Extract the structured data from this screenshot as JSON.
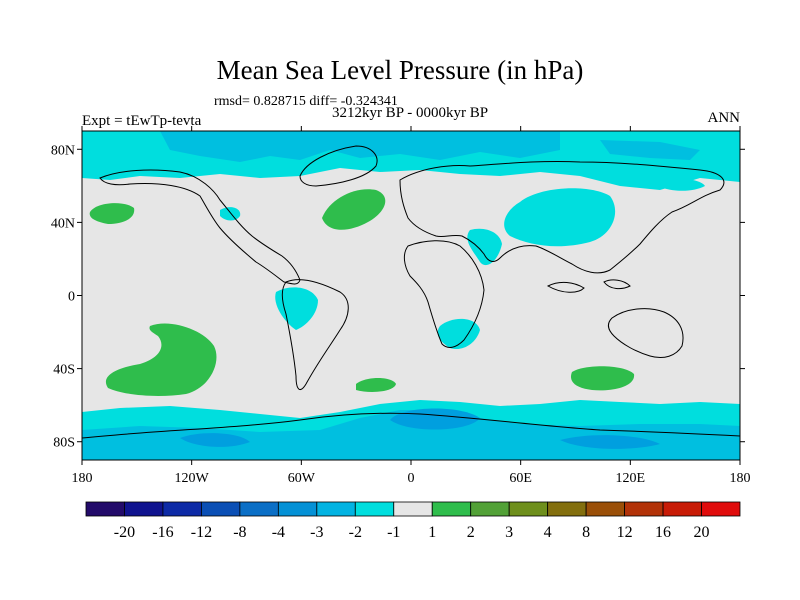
{
  "title": "Mean Sea Level Pressure (in hPa)",
  "stats_line": "rmsd= 0.828715 diff= -0.324341",
  "period": "3212kyr BP - 0000kyr BP",
  "experiment": "Expt = tEwTp-tevta",
  "season": "ANN",
  "map": {
    "lat_ticks": [
      "80N",
      "40N",
      "0",
      "40S",
      "80S"
    ],
    "lon_ticks": [
      "180",
      "120W",
      "60W",
      "0",
      "60E",
      "120E",
      "180"
    ],
    "colors": {
      "neutral": "#e6e6e6",
      "neg1": "#00dede",
      "neg2": "#00bfe0",
      "neg3": "#009fdf",
      "pos1": "#2fbd4c",
      "coast": "#000000"
    }
  },
  "colorbar": {
    "colors": [
      "#230b6a",
      "#10138f",
      "#0d2aa6",
      "#0b4fb5",
      "#0b6fc6",
      "#0491d6",
      "#02b3e2",
      "#00dede",
      "#e6e6e6",
      "#2fbd4c",
      "#52a137",
      "#6e8f1c",
      "#836f0e",
      "#9a4f08",
      "#b23208",
      "#c81b06",
      "#e00c0c"
    ],
    "labels": [
      "-20",
      "-16",
      "-12",
      "-8",
      "-4",
      "-3",
      "-2",
      "-1",
      "1",
      "2",
      "3",
      "4",
      "8",
      "12",
      "16",
      "20"
    ]
  }
}
